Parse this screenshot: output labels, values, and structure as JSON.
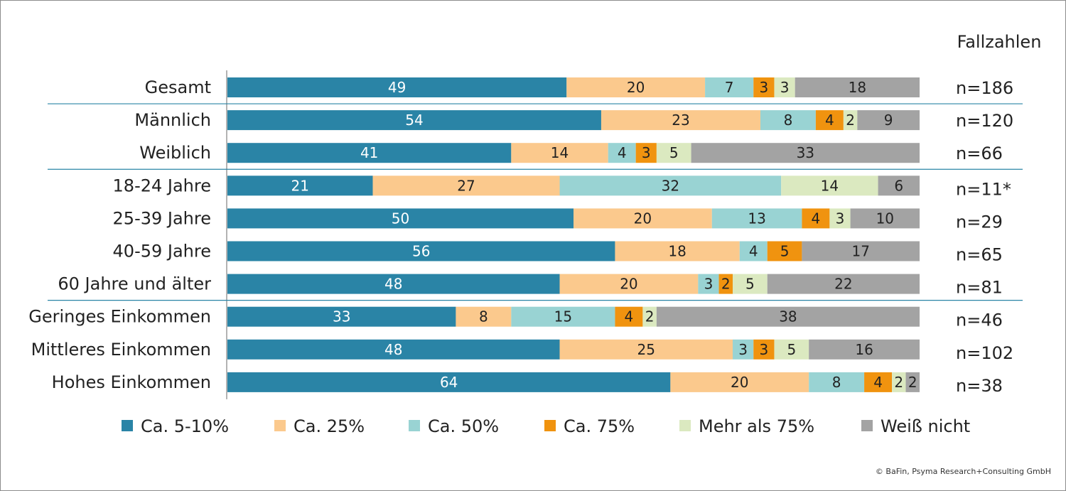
{
  "chart_data": {
    "type": "bar",
    "orientation": "horizontal",
    "stacked": true,
    "percent_scale": 100,
    "n_header": "Fallzahlen",
    "categories": [
      "Gesamt",
      "Männlich",
      "Weiblich",
      "18-24 Jahre",
      "25-39 Jahre",
      "40-59 Jahre",
      "60 Jahre und älter",
      "Geringes Einkommen",
      "Mittleres Einkommen",
      "Hohes Einkommen"
    ],
    "group_breaks_after": [
      0,
      2,
      6
    ],
    "n_values": [
      "n=186",
      "n=120",
      "n=66",
      "n=11*",
      "n=29",
      "n=65",
      "n=81",
      "n=46",
      "n=102",
      "n=38"
    ],
    "series": [
      {
        "name": "Ca. 5-10%",
        "color": "#2a84a6",
        "label_color": "#ffffff",
        "values": [
          49,
          54,
          41,
          21,
          50,
          56,
          48,
          33,
          48,
          64
        ]
      },
      {
        "name": "Ca. 25%",
        "color": "#fbc98d",
        "label_color": "#222222",
        "values": [
          20,
          23,
          14,
          27,
          20,
          18,
          20,
          8,
          25,
          20
        ]
      },
      {
        "name": "Ca. 50%",
        "color": "#99d3d3",
        "label_color": "#222222",
        "values": [
          7,
          8,
          4,
          32,
          13,
          4,
          3,
          15,
          3,
          8
        ]
      },
      {
        "name": "Ca. 75%",
        "color": "#f0930f",
        "label_color": "#222222",
        "values": [
          3,
          4,
          3,
          0,
          4,
          5,
          2,
          4,
          3,
          4
        ]
      },
      {
        "name": "Mehr als 75%",
        "color": "#dbe9c0",
        "label_color": "#222222",
        "values": [
          3,
          2,
          5,
          14,
          3,
          0,
          5,
          2,
          5,
          2
        ]
      },
      {
        "name": "Weiß nicht",
        "color": "#a3a3a3",
        "label_color": "#222222",
        "values": [
          18,
          9,
          33,
          6,
          10,
          17,
          22,
          38,
          16,
          2
        ]
      }
    ],
    "legend_position": "bottom",
    "grid": false
  },
  "footer": {
    "copyright": "© BaFin, Psyma Research+Consulting GmbH"
  }
}
